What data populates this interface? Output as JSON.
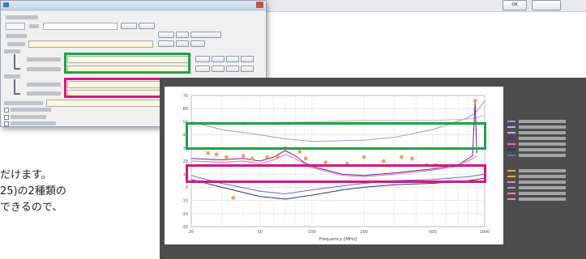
{
  "top_bar": {
    "ok_label": "OK",
    "cancel_label": ""
  },
  "dialog": {
    "title": "",
    "rows": [
      {
        "label": "",
        "value": "",
        "highlight": ""
      },
      {
        "label": "",
        "value": "",
        "highlight": ""
      },
      {
        "label": "",
        "value": "",
        "highlight": ""
      }
    ]
  },
  "body_text": {
    "line1": "だけます。",
    "line2": "25)の2種類の",
    "line3": "できるので、"
  },
  "chart_data": {
    "type": "line",
    "title": "",
    "xlabel": "Frequency [MHz]",
    "ylabel": "",
    "x_scale": "log",
    "xlim": [
      20,
      1000
    ],
    "ylim": [
      -30,
      70
    ],
    "x_ticks": [
      "20",
      "50",
      "100",
      "200",
      "500",
      "1000"
    ],
    "y_ticks": [
      "70",
      "60",
      "50",
      "40",
      "30",
      "20",
      "10",
      "0",
      "-10",
      "-20",
      "-30"
    ],
    "grid": true,
    "legend_position": "right",
    "series": [
      {
        "color": "#9b98d8",
        "x": [
          20,
          30,
          50,
          70,
          100,
          200,
          300,
          500,
          800,
          900,
          950,
          1000
        ],
        "y": [
          50,
          44,
          40,
          37,
          35,
          36,
          38,
          44,
          53,
          58,
          62,
          66
        ]
      },
      {
        "color": "#b9b5e6",
        "x": [
          20,
          50,
          100,
          200,
          500,
          800,
          900,
          1000
        ],
        "y": [
          48,
          49,
          50,
          51,
          51,
          52,
          53,
          55
        ]
      },
      {
        "color": "#7a1f7a",
        "x": [
          20,
          30,
          40,
          50,
          60,
          70,
          80,
          90,
          100,
          150,
          200,
          300,
          500,
          700,
          850,
          880,
          900
        ],
        "y": [
          22,
          21,
          22,
          20,
          23,
          28,
          24,
          19,
          16,
          10,
          9,
          11,
          14,
          17,
          24,
          65,
          26
        ]
      },
      {
        "color": "#d46ad4",
        "x": [
          20,
          30,
          40,
          50,
          60,
          70,
          80,
          90,
          100,
          150,
          200,
          300,
          500,
          700,
          850,
          900
        ],
        "y": [
          20,
          19,
          20,
          18,
          21,
          25,
          22,
          18,
          15,
          9,
          8,
          10,
          13,
          16,
          22,
          24
        ]
      },
      {
        "color": "#2b2f80",
        "x": [
          20,
          30,
          50,
          70,
          100,
          150,
          200,
          300,
          500,
          800,
          900,
          1000
        ],
        "y": [
          6,
          0,
          -7,
          -9,
          -6,
          -2,
          0,
          2,
          3,
          5,
          6,
          7
        ]
      },
      {
        "color": "#5c6ccf",
        "x": [
          20,
          30,
          50,
          70,
          100,
          150,
          200,
          300,
          500,
          800,
          900,
          1000
        ],
        "y": [
          9,
          3,
          -3,
          -5,
          -2,
          1,
          3,
          5,
          6,
          8,
          9,
          10
        ]
      }
    ],
    "markers": {
      "color": "#f0a05a",
      "points": [
        {
          "x": 25,
          "y": 26
        },
        {
          "x": 28,
          "y": 25
        },
        {
          "x": 32,
          "y": 23
        },
        {
          "x": 40,
          "y": 24
        },
        {
          "x": 45,
          "y": 22
        },
        {
          "x": 55,
          "y": 23
        },
        {
          "x": 63,
          "y": 23
        },
        {
          "x": 70,
          "y": 30
        },
        {
          "x": 85,
          "y": 27
        },
        {
          "x": 92,
          "y": 22
        },
        {
          "x": 100,
          "y": 16
        },
        {
          "x": 120,
          "y": 19
        },
        {
          "x": 160,
          "y": 18
        },
        {
          "x": 200,
          "y": 23
        },
        {
          "x": 260,
          "y": 20
        },
        {
          "x": 330,
          "y": 23
        },
        {
          "x": 380,
          "y": 22
        },
        {
          "x": 460,
          "y": 17
        },
        {
          "x": 520,
          "y": 17
        },
        {
          "x": 880,
          "y": 66
        },
        {
          "x": 35,
          "y": -8
        }
      ]
    }
  },
  "legend": [
    {
      "color": "#9b98d8",
      "label": ""
    },
    {
      "color": "#b9b5e6",
      "label": ""
    },
    {
      "color": "#b9b5e6",
      "label": ""
    },
    {
      "color": "#7a1f7a",
      "label": ""
    },
    {
      "color": "#d46ad4",
      "label": ""
    },
    {
      "color": "#2b2f80",
      "label": ""
    },
    {
      "color": "#5c6ccf",
      "label": ""
    },
    {
      "color": "#f0a05a",
      "label": ""
    },
    {
      "color": "#f0a05a",
      "label": ""
    },
    {
      "color": "#e08ad0",
      "label": ""
    },
    {
      "color": "#e08ad0",
      "label": ""
    },
    {
      "color": "#e08ad0",
      "label": ""
    },
    {
      "color": "#e08ad0",
      "label": ""
    }
  ],
  "highlight_colors": {
    "green": "#1fa346",
    "magenta": "#d4177e"
  }
}
